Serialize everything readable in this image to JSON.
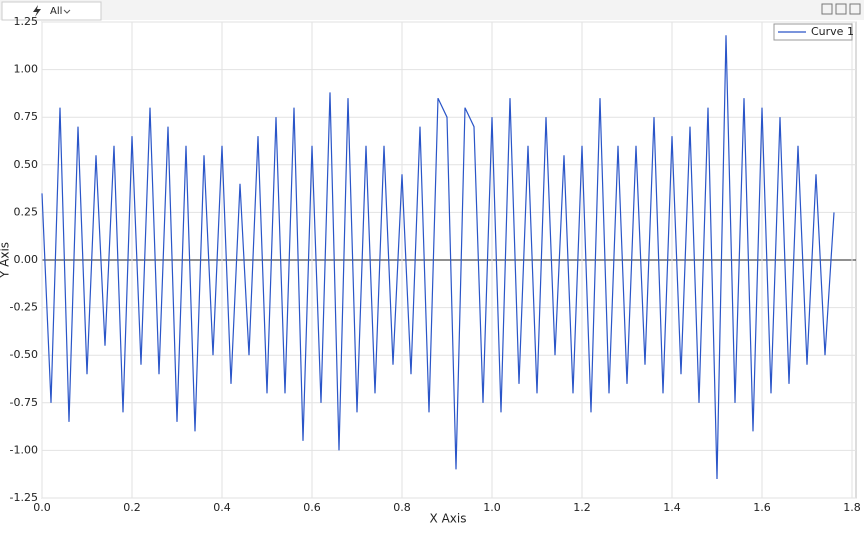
{
  "toolbar": {
    "tab": "All"
  },
  "chart_data": {
    "type": "line",
    "xlabel": "X Axis",
    "ylabel": "Y Axis",
    "x": [
      0,
      0.02,
      0.04,
      0.06,
      0.08,
      0.1,
      0.12,
      0.14,
      0.16,
      0.18,
      0.2,
      0.22,
      0.24,
      0.26,
      0.28,
      0.3,
      0.32,
      0.34,
      0.36,
      0.38,
      0.4,
      0.42,
      0.44,
      0.46,
      0.48,
      0.5,
      0.52,
      0.54,
      0.56,
      0.58,
      0.6,
      0.62,
      0.64,
      0.66,
      0.68,
      0.7,
      0.72,
      0.74,
      0.76,
      0.78,
      0.8,
      0.82,
      0.84,
      0.86,
      0.88,
      0.9,
      0.92,
      0.94,
      0.96,
      0.98,
      1.0,
      1.02,
      1.04,
      1.06,
      1.08,
      1.1,
      1.12,
      1.14,
      1.16,
      1.18,
      1.2,
      1.22,
      1.24,
      1.26,
      1.28,
      1.3,
      1.32,
      1.34,
      1.36,
      1.38,
      1.4,
      1.42,
      1.44,
      1.46,
      1.48,
      1.5,
      1.52,
      1.54,
      1.56,
      1.58,
      1.6,
      1.62,
      1.64,
      1.66,
      1.68,
      1.7,
      1.72,
      1.74,
      1.76
    ],
    "series": [
      {
        "name": "Curve 1",
        "color": "#2a55c8",
        "values": [
          0.35,
          -0.75,
          0.8,
          -0.85,
          0.7,
          -0.6,
          0.55,
          -0.45,
          0.6,
          -0.8,
          0.65,
          -0.55,
          0.8,
          -0.6,
          0.7,
          -0.85,
          0.6,
          -0.9,
          0.55,
          -0.5,
          0.6,
          -0.65,
          0.4,
          -0.5,
          0.65,
          -0.7,
          0.75,
          -0.7,
          0.8,
          -0.95,
          0.6,
          -0.75,
          0.88,
          -1.0,
          0.85,
          -0.8,
          0.6,
          -0.7,
          0.6,
          -0.55,
          0.45,
          -0.6,
          0.7,
          -0.8,
          0.85,
          0.75,
          -1.1,
          0.8,
          0.7,
          -0.75,
          0.75,
          -0.8,
          0.85,
          -0.65,
          0.6,
          -0.7,
          0.75,
          -0.5,
          0.55,
          -0.7,
          0.6,
          -0.8,
          0.85,
          -0.7,
          0.6,
          -0.65,
          0.6,
          -0.55,
          0.75,
          -0.7,
          0.65,
          -0.6,
          0.7,
          -0.75,
          0.8,
          -1.15,
          1.18,
          -0.75,
          0.85,
          -0.9,
          0.8,
          -0.7,
          0.75,
          -0.65,
          0.6,
          -0.55,
          0.45,
          -0.5,
          0.25
        ]
      }
    ],
    "xlim": [
      0,
      1.8
    ],
    "xticks": [
      {
        "value": 0,
        "label": "0.0"
      },
      0.2,
      0.4,
      0.6,
      0.8,
      {
        "value": 1,
        "label": "1.0"
      },
      1.2,
      1.4,
      1.6,
      1.8
    ],
    "ylim": [
      -1.25,
      1.25
    ],
    "yticks": [
      -1.25,
      {
        "value": -1,
        "label": "-1.00"
      },
      -0.75,
      {
        "value": -0.5,
        "label": "-0.50"
      },
      -0.25,
      {
        "value": 0,
        "label": "0.00"
      },
      0.25,
      {
        "value": 0.5,
        "label": "0.50"
      },
      0.75,
      {
        "value": 1,
        "label": "1.00"
      },
      1.25
    ],
    "grid": true,
    "legend": "upper right"
  }
}
